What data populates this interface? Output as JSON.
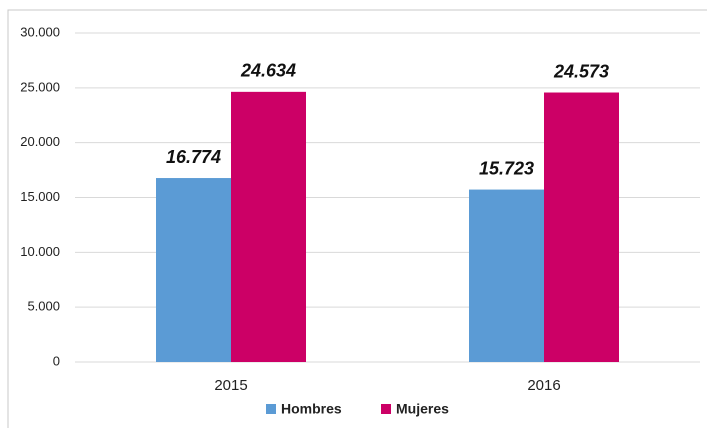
{
  "chart_data": {
    "type": "bar",
    "categories": [
      "2015",
      "2016"
    ],
    "series": [
      {
        "name": "Hombres",
        "color": "#5b9bd5",
        "values": [
          16774,
          15723
        ],
        "value_labels": [
          "16.774",
          "15.723"
        ]
      },
      {
        "name": "Mujeres",
        "color": "#cc0066",
        "values": [
          24634,
          24573
        ],
        "value_labels": [
          "24.634",
          "24.573"
        ]
      }
    ],
    "ylim": [
      0,
      30000
    ],
    "yticks": [
      0,
      {
        "value": 5000,
        "label": "5.000"
      },
      {
        "value": 10000,
        "label": "10.000"
      },
      {
        "value": 15000,
        "label": "15.000"
      },
      {
        "value": 20000,
        "label": "20.000"
      },
      {
        "value": 25000,
        "label": "25.000"
      },
      {
        "value": 30000,
        "label": "30.000"
      }
    ],
    "grid": true,
    "legend": "bottom"
  }
}
